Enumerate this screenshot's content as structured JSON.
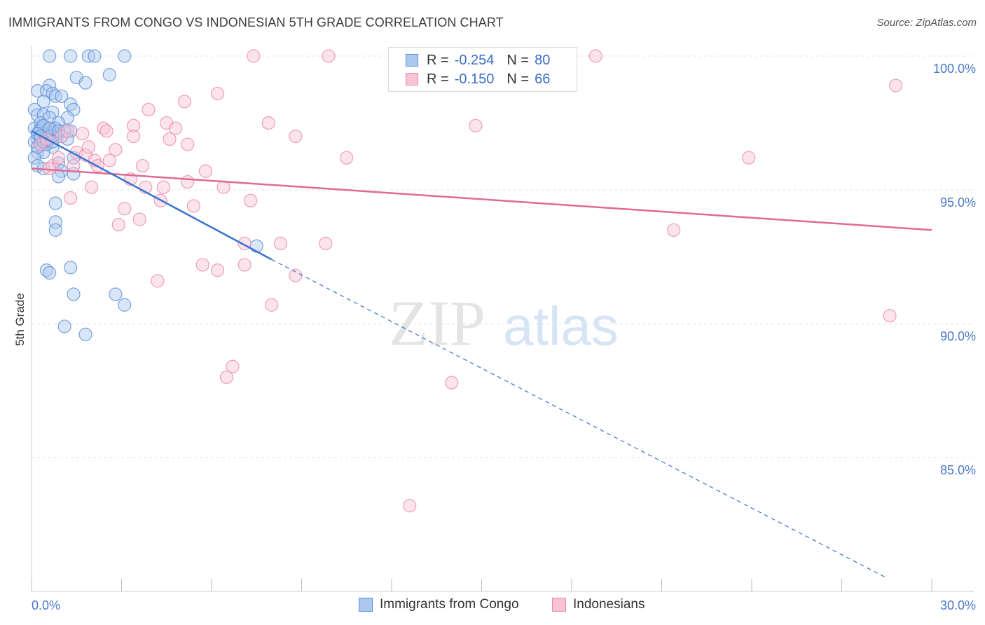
{
  "header": {
    "title": "IMMIGRANTS FROM CONGO VS INDONESIAN 5TH GRADE CORRELATION CHART",
    "source": "Source: ZipAtlas.com"
  },
  "watermark": {
    "zip": "ZIP",
    "atlas": "atlas"
  },
  "legend": {
    "rows": [
      {
        "r_label": "R =",
        "r_value": "-0.254",
        "n_label": "N =",
        "n_value": "80"
      },
      {
        "r_label": "R =",
        "r_value": "-0.150",
        "n_label": "N =",
        "n_value": "66"
      }
    ]
  },
  "bottom_legend": [
    "Immigrants from Congo",
    "Indonesians"
  ],
  "colors": {
    "congo_fill": "#aac8f0",
    "congo_stroke": "#5b8fd6",
    "congo_line": "#3a73d0",
    "indo_fill": "#f8c4d4",
    "indo_stroke": "#e88aa8",
    "indo_line": "#e06a93",
    "grid": "#e3e3e3",
    "tick_text": "#4a78c8"
  },
  "chart_data": {
    "type": "scatter",
    "title": "IMMIGRANTS FROM CONGO VS INDONESIAN 5TH GRADE CORRELATION CHART",
    "xlabel": "",
    "ylabel": "5th Grade",
    "xlim": [
      0,
      30
    ],
    "ylim": [
      80.5,
      100.8
    ],
    "x_tick_labels": [
      "0.0%",
      "30.0%"
    ],
    "y_ticks": [
      85,
      90,
      95,
      100
    ],
    "y_tick_labels": [
      "85.0%",
      "90.0%",
      "95.0%",
      "100.0%"
    ],
    "grid": true,
    "legend_position": "top-center",
    "series": [
      {
        "name": "Immigrants from Congo",
        "r": -0.254,
        "n": 80,
        "trend": {
          "solid": [
            [
              0.0,
              97.2
            ],
            [
              8.0,
              92.4
            ]
          ],
          "dashed": [
            [
              8.0,
              92.4
            ],
            [
              28.5,
              80.5
            ]
          ]
        },
        "points": [
          [
            0.6,
            100.0
          ],
          [
            1.3,
            100.0
          ],
          [
            1.9,
            100.0
          ],
          [
            2.1,
            100.0
          ],
          [
            3.1,
            100.0
          ],
          [
            1.5,
            99.2
          ],
          [
            2.6,
            99.3
          ],
          [
            1.8,
            99.0
          ],
          [
            0.6,
            98.9
          ],
          [
            0.2,
            98.7
          ],
          [
            0.5,
            98.7
          ],
          [
            0.7,
            98.6
          ],
          [
            0.8,
            98.5
          ],
          [
            1.0,
            98.5
          ],
          [
            0.4,
            98.3
          ],
          [
            1.3,
            98.2
          ],
          [
            1.4,
            98.0
          ],
          [
            0.1,
            98.0
          ],
          [
            0.7,
            97.9
          ],
          [
            0.2,
            97.8
          ],
          [
            0.4,
            97.8
          ],
          [
            0.6,
            97.7
          ],
          [
            1.2,
            97.7
          ],
          [
            0.3,
            97.5
          ],
          [
            0.9,
            97.5
          ],
          [
            0.1,
            97.3
          ],
          [
            0.3,
            97.3
          ],
          [
            0.5,
            97.2
          ],
          [
            0.7,
            97.2
          ],
          [
            0.8,
            97.2
          ],
          [
            0.2,
            97.1
          ],
          [
            0.4,
            97.1
          ],
          [
            0.6,
            97.1
          ],
          [
            1.3,
            97.2
          ],
          [
            1.0,
            97.0
          ],
          [
            0.2,
            96.9
          ],
          [
            0.5,
            96.8
          ],
          [
            0.1,
            96.8
          ],
          [
            0.3,
            96.7
          ],
          [
            0.7,
            96.6
          ],
          [
            0.2,
            96.4
          ],
          [
            0.4,
            96.4
          ],
          [
            1.4,
            96.2
          ],
          [
            0.1,
            96.2
          ],
          [
            0.9,
            96.0
          ],
          [
            0.2,
            95.9
          ],
          [
            0.4,
            95.8
          ],
          [
            1.0,
            95.7
          ],
          [
            1.4,
            95.6
          ],
          [
            0.9,
            95.5
          ],
          [
            0.8,
            94.5
          ],
          [
            0.8,
            93.8
          ],
          [
            0.8,
            93.5
          ],
          [
            0.5,
            92.0
          ],
          [
            0.6,
            91.9
          ],
          [
            1.3,
            92.1
          ],
          [
            1.4,
            91.1
          ],
          [
            2.8,
            91.1
          ],
          [
            3.1,
            90.7
          ],
          [
            1.1,
            89.9
          ],
          [
            1.8,
            89.6
          ],
          [
            7.5,
            92.9
          ],
          [
            0.3,
            97.2
          ],
          [
            0.5,
            97.0
          ],
          [
            0.9,
            97.1
          ],
          [
            0.2,
            96.6
          ],
          [
            0.6,
            96.9
          ],
          [
            0.4,
            97.4
          ],
          [
            0.8,
            97.3
          ],
          [
            0.3,
            96.9
          ],
          [
            0.7,
            97.0
          ],
          [
            1.1,
            97.2
          ],
          [
            0.5,
            96.7
          ],
          [
            0.2,
            97.1
          ],
          [
            0.6,
            97.3
          ],
          [
            0.4,
            96.8
          ],
          [
            1.2,
            96.9
          ],
          [
            0.9,
            97.2
          ],
          [
            0.3,
            97.0
          ],
          [
            0.7,
            96.8
          ]
        ]
      },
      {
        "name": "Indonesians",
        "r": -0.15,
        "n": 66,
        "trend": {
          "solid": [
            [
              0.0,
              95.8
            ],
            [
              30.0,
              93.5
            ]
          ]
        },
        "points": [
          [
            7.4,
            100.0
          ],
          [
            9.9,
            100.0
          ],
          [
            18.8,
            100.0
          ],
          [
            28.8,
            98.9
          ],
          [
            6.2,
            98.6
          ],
          [
            5.1,
            98.3
          ],
          [
            3.9,
            98.0
          ],
          [
            7.9,
            97.5
          ],
          [
            14.8,
            97.4
          ],
          [
            4.5,
            97.5
          ],
          [
            2.4,
            97.3
          ],
          [
            3.4,
            97.4
          ],
          [
            2.5,
            97.2
          ],
          [
            1.7,
            97.1
          ],
          [
            4.8,
            97.3
          ],
          [
            1.0,
            97.0
          ],
          [
            3.4,
            97.0
          ],
          [
            4.6,
            96.9
          ],
          [
            8.8,
            97.0
          ],
          [
            5.2,
            96.7
          ],
          [
            2.8,
            96.5
          ],
          [
            1.5,
            96.4
          ],
          [
            1.8,
            96.3
          ],
          [
            2.1,
            96.1
          ],
          [
            10.5,
            96.2
          ],
          [
            23.9,
            96.2
          ],
          [
            0.7,
            95.9
          ],
          [
            1.4,
            95.9
          ],
          [
            3.7,
            95.9
          ],
          [
            5.8,
            95.7
          ],
          [
            3.3,
            95.4
          ],
          [
            5.2,
            95.3
          ],
          [
            2.0,
            95.1
          ],
          [
            3.8,
            95.1
          ],
          [
            4.4,
            95.1
          ],
          [
            6.4,
            95.1
          ],
          [
            1.3,
            94.7
          ],
          [
            4.3,
            94.6
          ],
          [
            7.3,
            94.6
          ],
          [
            5.4,
            94.4
          ],
          [
            3.1,
            94.3
          ],
          [
            3.6,
            93.9
          ],
          [
            2.9,
            93.7
          ],
          [
            21.4,
            93.5
          ],
          [
            7.1,
            93.0
          ],
          [
            8.3,
            93.0
          ],
          [
            9.8,
            93.0
          ],
          [
            5.7,
            92.2
          ],
          [
            7.1,
            92.2
          ],
          [
            6.2,
            92.0
          ],
          [
            8.8,
            91.8
          ],
          [
            4.2,
            91.6
          ],
          [
            8.0,
            90.7
          ],
          [
            28.6,
            90.3
          ],
          [
            6.7,
            88.4
          ],
          [
            6.5,
            88.0
          ],
          [
            14.0,
            87.8
          ],
          [
            12.6,
            83.2
          ],
          [
            0.3,
            96.7
          ],
          [
            0.9,
            96.2
          ],
          [
            2.2,
            95.9
          ],
          [
            1.2,
            97.2
          ],
          [
            0.5,
            96.9
          ],
          [
            2.6,
            96.1
          ],
          [
            0.6,
            95.8
          ],
          [
            1.9,
            96.6
          ]
        ]
      }
    ]
  }
}
